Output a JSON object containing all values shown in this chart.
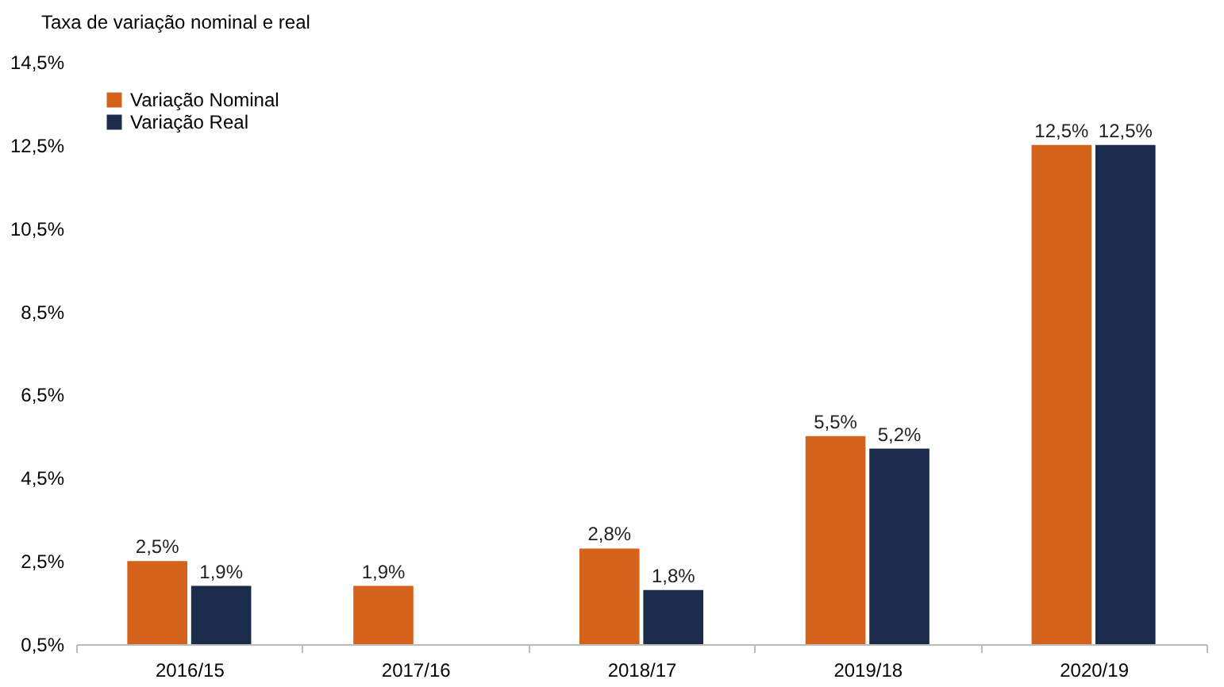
{
  "chart_data": {
    "type": "bar",
    "title": "Taxa de variação nominal e real",
    "categories": [
      "2016/15",
      "2017/16",
      "2018/17",
      "2019/18",
      "2020/19"
    ],
    "series": [
      {
        "name": "Variação Nominal",
        "color": "#d4621a",
        "values": [
          2.5,
          1.9,
          2.8,
          5.5,
          12.5
        ],
        "value_labels": [
          "2,5%",
          "1,9%",
          "2,8%",
          "5,5%",
          "12,5%"
        ]
      },
      {
        "name": "Variação Real",
        "color": "#1a2b4c",
        "values": [
          1.9,
          null,
          1.8,
          5.2,
          12.5
        ],
        "value_labels": [
          "1,9%",
          null,
          "1,8%",
          "5,2%",
          "12,5%"
        ]
      }
    ],
    "ylim": [
      0.5,
      14.5
    ],
    "yticks": [
      {
        "value": 0.5,
        "label": "0,5%"
      },
      {
        "value": 2.5,
        "label": "2,5%"
      },
      {
        "value": 4.5,
        "label": "4,5%"
      },
      {
        "value": 6.5,
        "label": "6,5%"
      },
      {
        "value": 8.5,
        "label": "8,5%"
      },
      {
        "value": 10.5,
        "label": "10,5%"
      },
      {
        "value": 12.5,
        "label": "12,5%"
      },
      {
        "value": 14.5,
        "label": "14,5%"
      }
    ],
    "grid": false,
    "legend": "top left"
  }
}
